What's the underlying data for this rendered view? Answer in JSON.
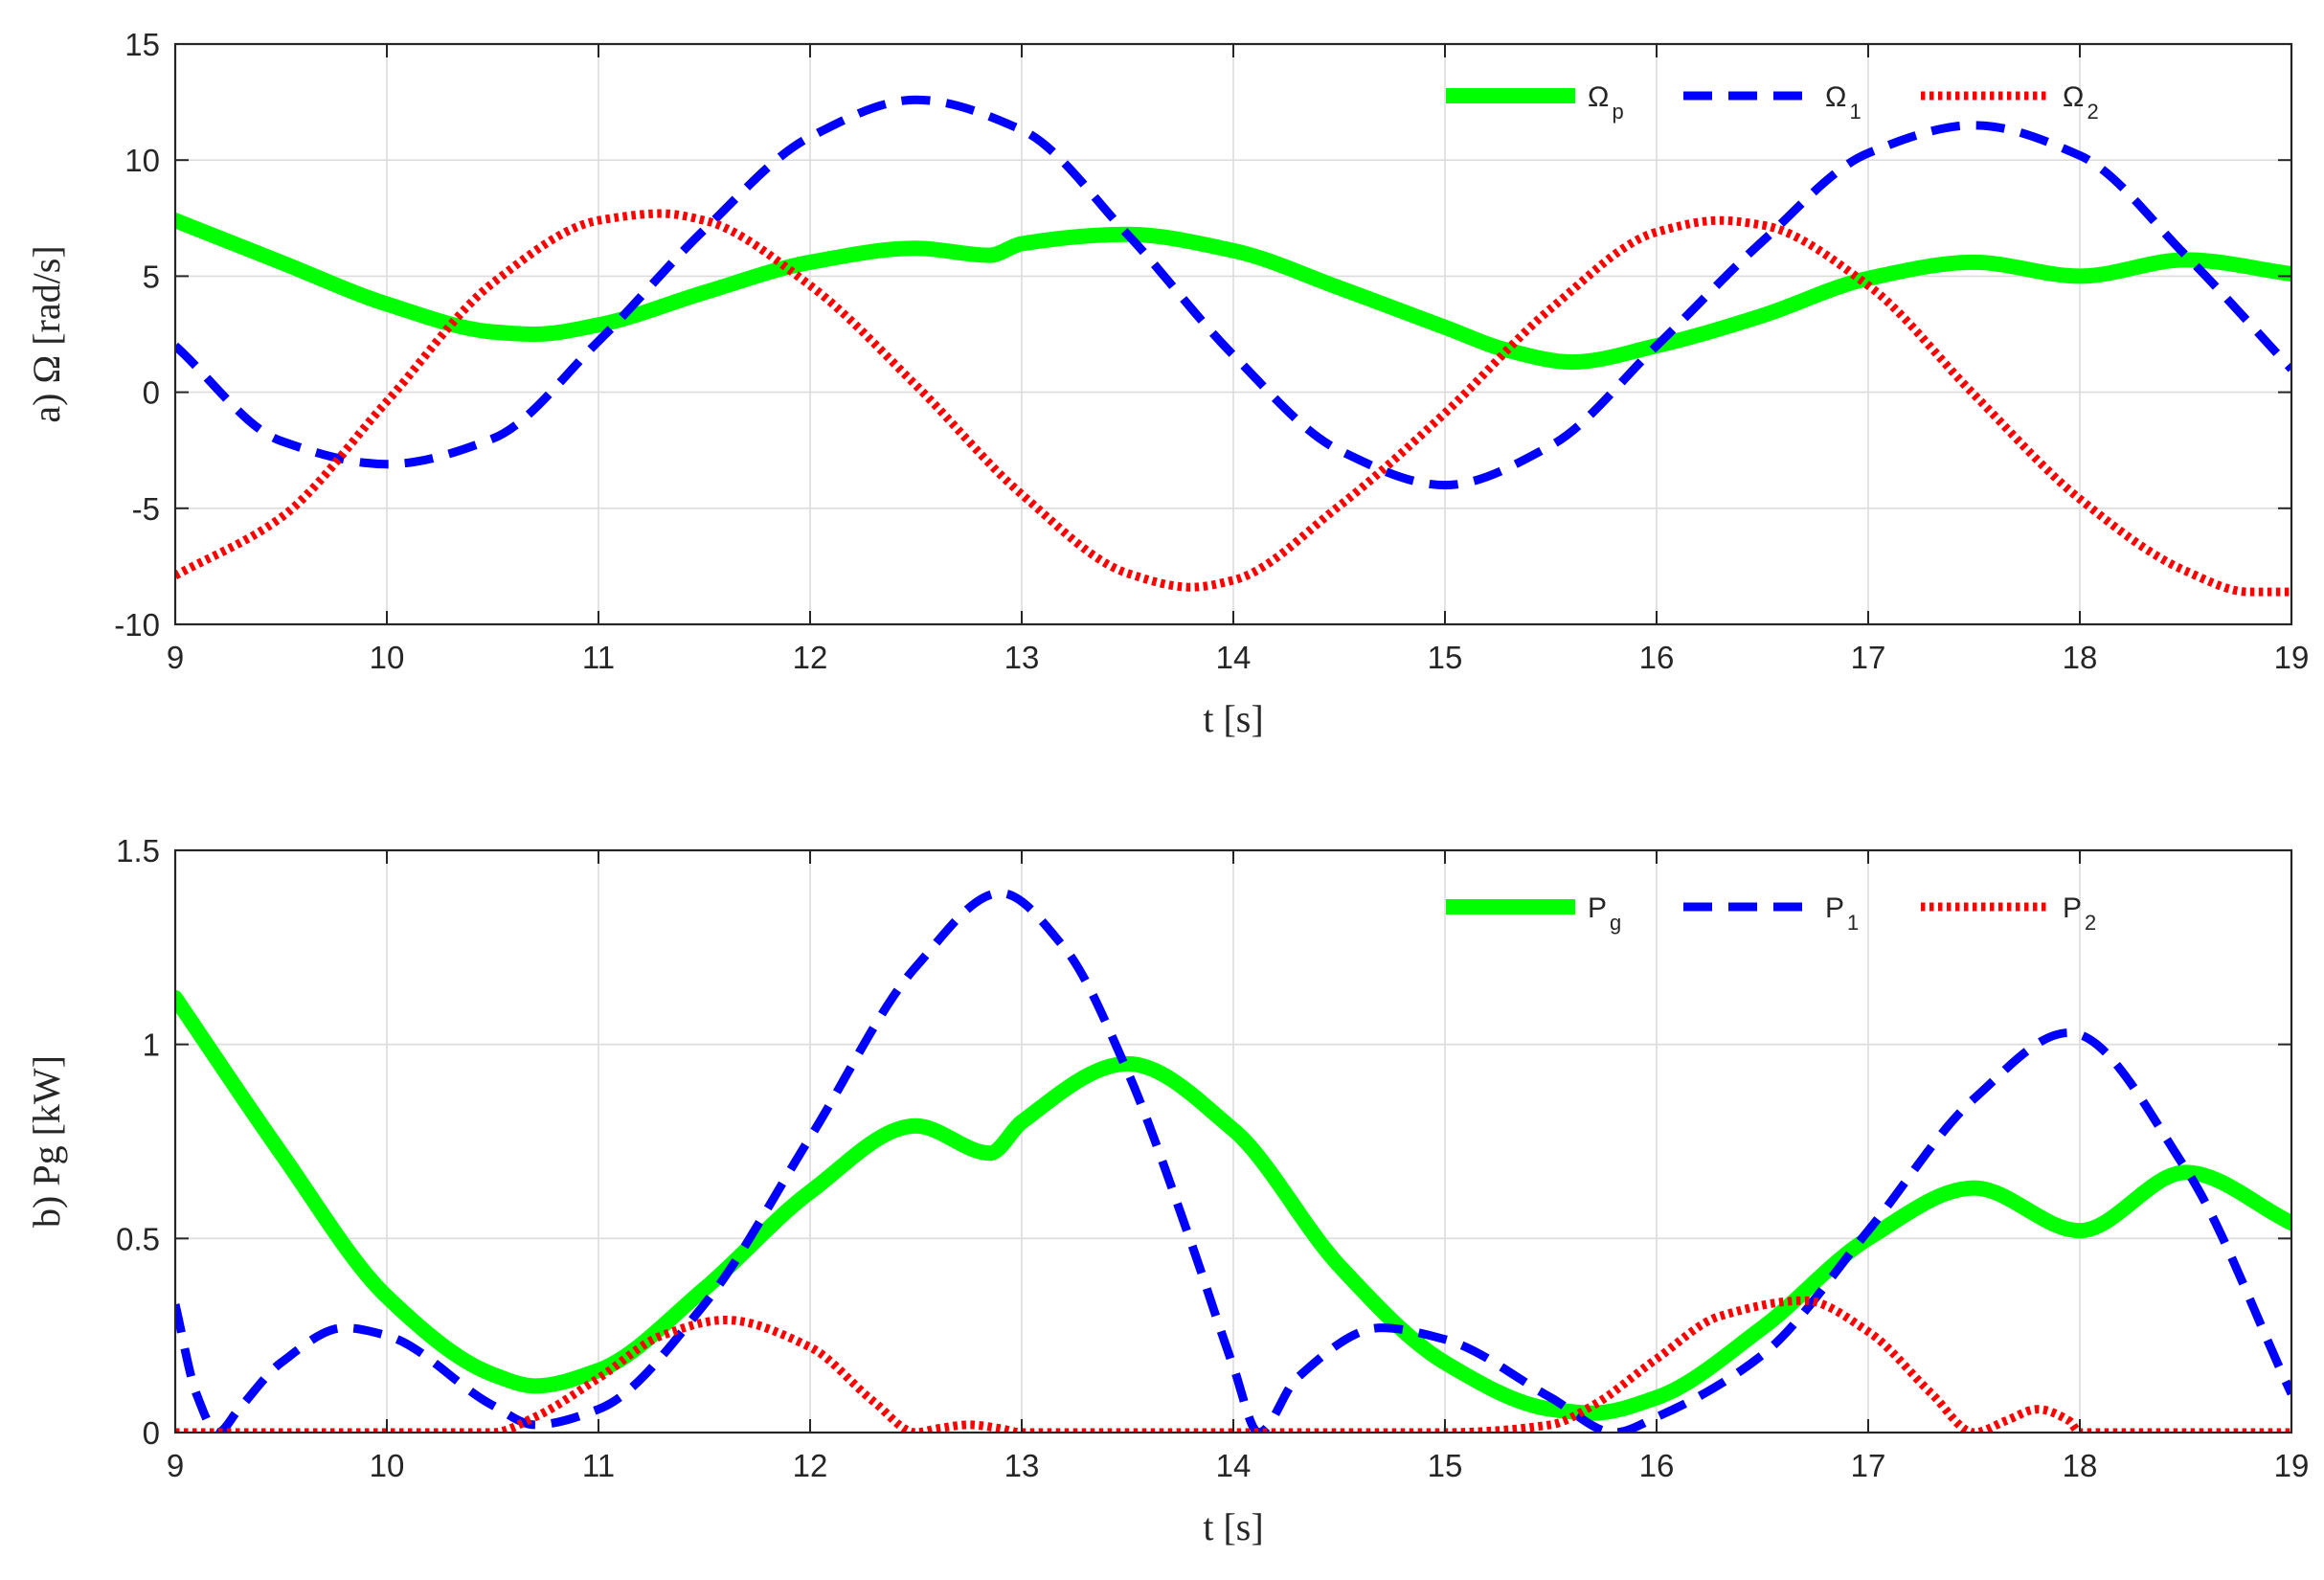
{
  "chart_data": [
    {
      "type": "line",
      "panel": "a",
      "title": "",
      "xlabel": "t [s]",
      "ylabel": "a) Ω [rad/s]",
      "xlim": [
        9,
        19
      ],
      "ylim": [
        -10,
        15
      ],
      "xticks": [
        "9",
        "10",
        "11",
        "12",
        "13",
        "14",
        "15",
        "16",
        "17",
        "18",
        "19"
      ],
      "yticks": [
        "-10",
        "-5",
        "0",
        "5",
        "10",
        "15"
      ],
      "grid": true,
      "legend_position": "top-right",
      "legend": [
        {
          "name": "Ω",
          "sub": "p"
        },
        {
          "name": "Ω",
          "sub": "1"
        },
        {
          "name": "Ω",
          "sub": "2"
        }
      ],
      "series": [
        {
          "name": "Ωp",
          "color": "#00ff00",
          "style": "solid",
          "x": [
            9,
            9.5,
            10,
            10.5,
            10.7,
            11,
            11.5,
            12,
            12.5,
            12.85,
            13,
            13.5,
            14,
            14.5,
            15,
            15.3,
            15.6,
            16,
            16.5,
            17,
            17.5,
            18,
            18.5,
            19
          ],
          "y": [
            7.4,
            5.6,
            3.8,
            2.6,
            2.5,
            2.9,
            4.3,
            5.6,
            6.2,
            5.9,
            6.4,
            6.8,
            6.1,
            4.5,
            2.8,
            1.8,
            1.3,
            2.0,
            3.3,
            4.9,
            5.6,
            5.0,
            5.7,
            5.1
          ]
        },
        {
          "name": "Ω1",
          "color": "#0000ff",
          "style": "dashed",
          "x": [
            9,
            9.5,
            10,
            10.5,
            11,
            11.5,
            12,
            12.5,
            13,
            13.5,
            14,
            14.5,
            15,
            15.5,
            16,
            16.5,
            17,
            17.5,
            18,
            18.5,
            19
          ],
          "y": [
            2.0,
            -2.1,
            -3.1,
            -2.0,
            2.2,
            7.0,
            11.0,
            12.6,
            11.3,
            6.8,
            1.6,
            -2.5,
            -4.0,
            -2.3,
            2.0,
            6.5,
            10.3,
            11.5,
            10.2,
            5.9,
            1.0
          ]
        },
        {
          "name": "Ω2",
          "color": "#ff0000",
          "style": "dotted",
          "x": [
            9,
            9.5,
            10,
            10.5,
            11,
            11.3,
            11.5,
            12,
            12.5,
            13,
            13.5,
            13.8,
            14,
            14.5,
            15,
            15.5,
            16,
            16.3,
            16.5,
            17,
            17.5,
            18,
            18.5,
            18.8,
            19
          ],
          "y": [
            -7.9,
            -5.4,
            -0.4,
            4.7,
            7.4,
            7.7,
            7.4,
            4.6,
            0.3,
            -4.4,
            -7.8,
            -8.4,
            -8.1,
            -4.9,
            -0.9,
            3.6,
            6.9,
            7.4,
            7.2,
            4.6,
            -0.1,
            -4.6,
            -7.7,
            -8.6,
            -8.6
          ]
        }
      ]
    },
    {
      "type": "line",
      "panel": "b",
      "title": "",
      "xlabel": "t [s]",
      "ylabel": "b) Pg [kW]",
      "xlim": [
        9,
        19
      ],
      "ylim": [
        0,
        1.5
      ],
      "xticks": [
        "9",
        "10",
        "11",
        "12",
        "13",
        "14",
        "15",
        "16",
        "17",
        "18",
        "19"
      ],
      "yticks": [
        "0",
        "0.5",
        "1",
        "1.5"
      ],
      "grid": true,
      "legend_position": "top-right",
      "legend": [
        {
          "name": "P",
          "sub": "g"
        },
        {
          "name": "P",
          "sub": "1"
        },
        {
          "name": "P",
          "sub": "2"
        }
      ],
      "series": [
        {
          "name": "Pg",
          "color": "#00ff00",
          "style": "solid",
          "x": [
            9,
            9.5,
            10,
            10.5,
            10.7,
            11,
            11.5,
            12,
            12.5,
            12.85,
            13,
            13.5,
            14,
            14.5,
            15,
            15.5,
            15.7,
            16,
            16.5,
            17,
            17.5,
            18,
            18.5,
            19
          ],
          "y": [
            1.12,
            0.72,
            0.35,
            0.15,
            0.12,
            0.16,
            0.37,
            0.62,
            0.79,
            0.72,
            0.8,
            0.95,
            0.78,
            0.43,
            0.18,
            0.06,
            0.05,
            0.09,
            0.27,
            0.5,
            0.63,
            0.52,
            0.67,
            0.54
          ]
        },
        {
          "name": "P1",
          "color": "#0000ff",
          "style": "dashed",
          "x": [
            9,
            9.1,
            9.2,
            9.3,
            9.5,
            9.8,
            10,
            10.5,
            10.7,
            11,
            11.5,
            12,
            12.5,
            12.9,
            13.2,
            13.5,
            13.8,
            14,
            14.12,
            14.3,
            14.7,
            15,
            15.5,
            15.8,
            16,
            16.5,
            17,
            17.5,
            17.95,
            18.5,
            19
          ],
          "y": [
            0.33,
            0.1,
            0.0,
            0.06,
            0.18,
            0.27,
            0.25,
            0.07,
            0.02,
            0.06,
            0.33,
            0.76,
            1.2,
            1.39,
            1.25,
            0.93,
            0.49,
            0.17,
            0.0,
            0.14,
            0.27,
            0.24,
            0.09,
            0.0,
            0.04,
            0.2,
            0.52,
            0.86,
            1.03,
            0.68,
            0.1
          ]
        },
        {
          "name": "P2",
          "color": "#ff0000",
          "style": "dotted",
          "x": [
            9,
            10,
            10.5,
            10.7,
            11,
            11.3,
            11.6,
            12,
            12.3,
            12.5,
            12.6,
            12.75,
            12.9,
            13,
            14,
            15,
            15.5,
            15.7,
            16,
            16.3,
            16.7,
            17,
            17.3,
            17.5,
            17.65,
            17.8,
            17.95,
            18,
            19
          ],
          "y": [
            0,
            0,
            0,
            0.04,
            0.14,
            0.25,
            0.29,
            0.22,
            0.08,
            0.0,
            0.01,
            0.02,
            0.01,
            0,
            0,
            0,
            0.02,
            0.07,
            0.19,
            0.3,
            0.34,
            0.26,
            0.1,
            0.0,
            0.03,
            0.06,
            0.03,
            0,
            0
          ]
        }
      ]
    }
  ]
}
